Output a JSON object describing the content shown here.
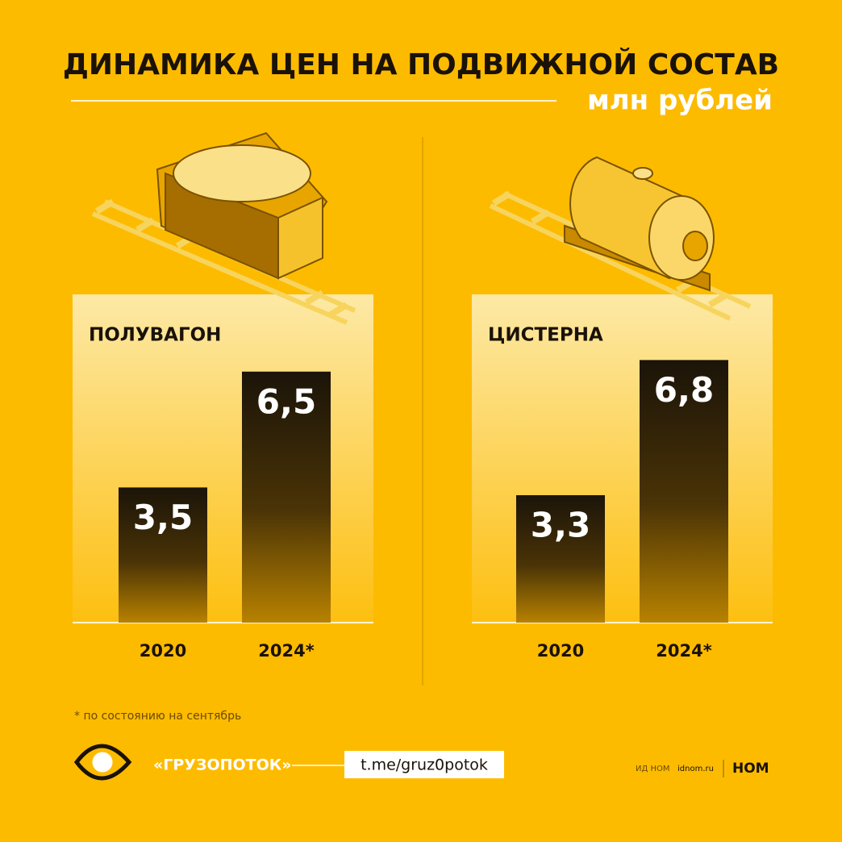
{
  "header": {
    "title": "ДИНАМИКА ЦЕН НА ПОДВИЖНОЙ СОСТАВ",
    "subtitle": "млн рублей"
  },
  "chart_data": [
    {
      "type": "bar",
      "title": "ПОЛУВАГОН",
      "categories": [
        "2020",
        "2024*"
      ],
      "values": [
        3.5,
        6.5
      ],
      "value_labels": [
        "3,5",
        "6,5"
      ],
      "ylim": [
        0,
        8.5
      ]
    },
    {
      "type": "bar",
      "title": "ЦИСТЕРНА",
      "categories": [
        "2020",
        "2024*"
      ],
      "values": [
        3.3,
        6.8
      ],
      "value_labels": [
        "3,3",
        "6,8"
      ],
      "ylim": [
        0,
        8.5
      ]
    }
  ],
  "footnote": "* по состоянию на сентябрь",
  "footer": {
    "brand": "«ГРУЗОПОТОК»",
    "link": "t.me/gruz0potok",
    "publisher": "ИД НОМ",
    "site": "idnom.ru",
    "logo": "НОМ"
  }
}
